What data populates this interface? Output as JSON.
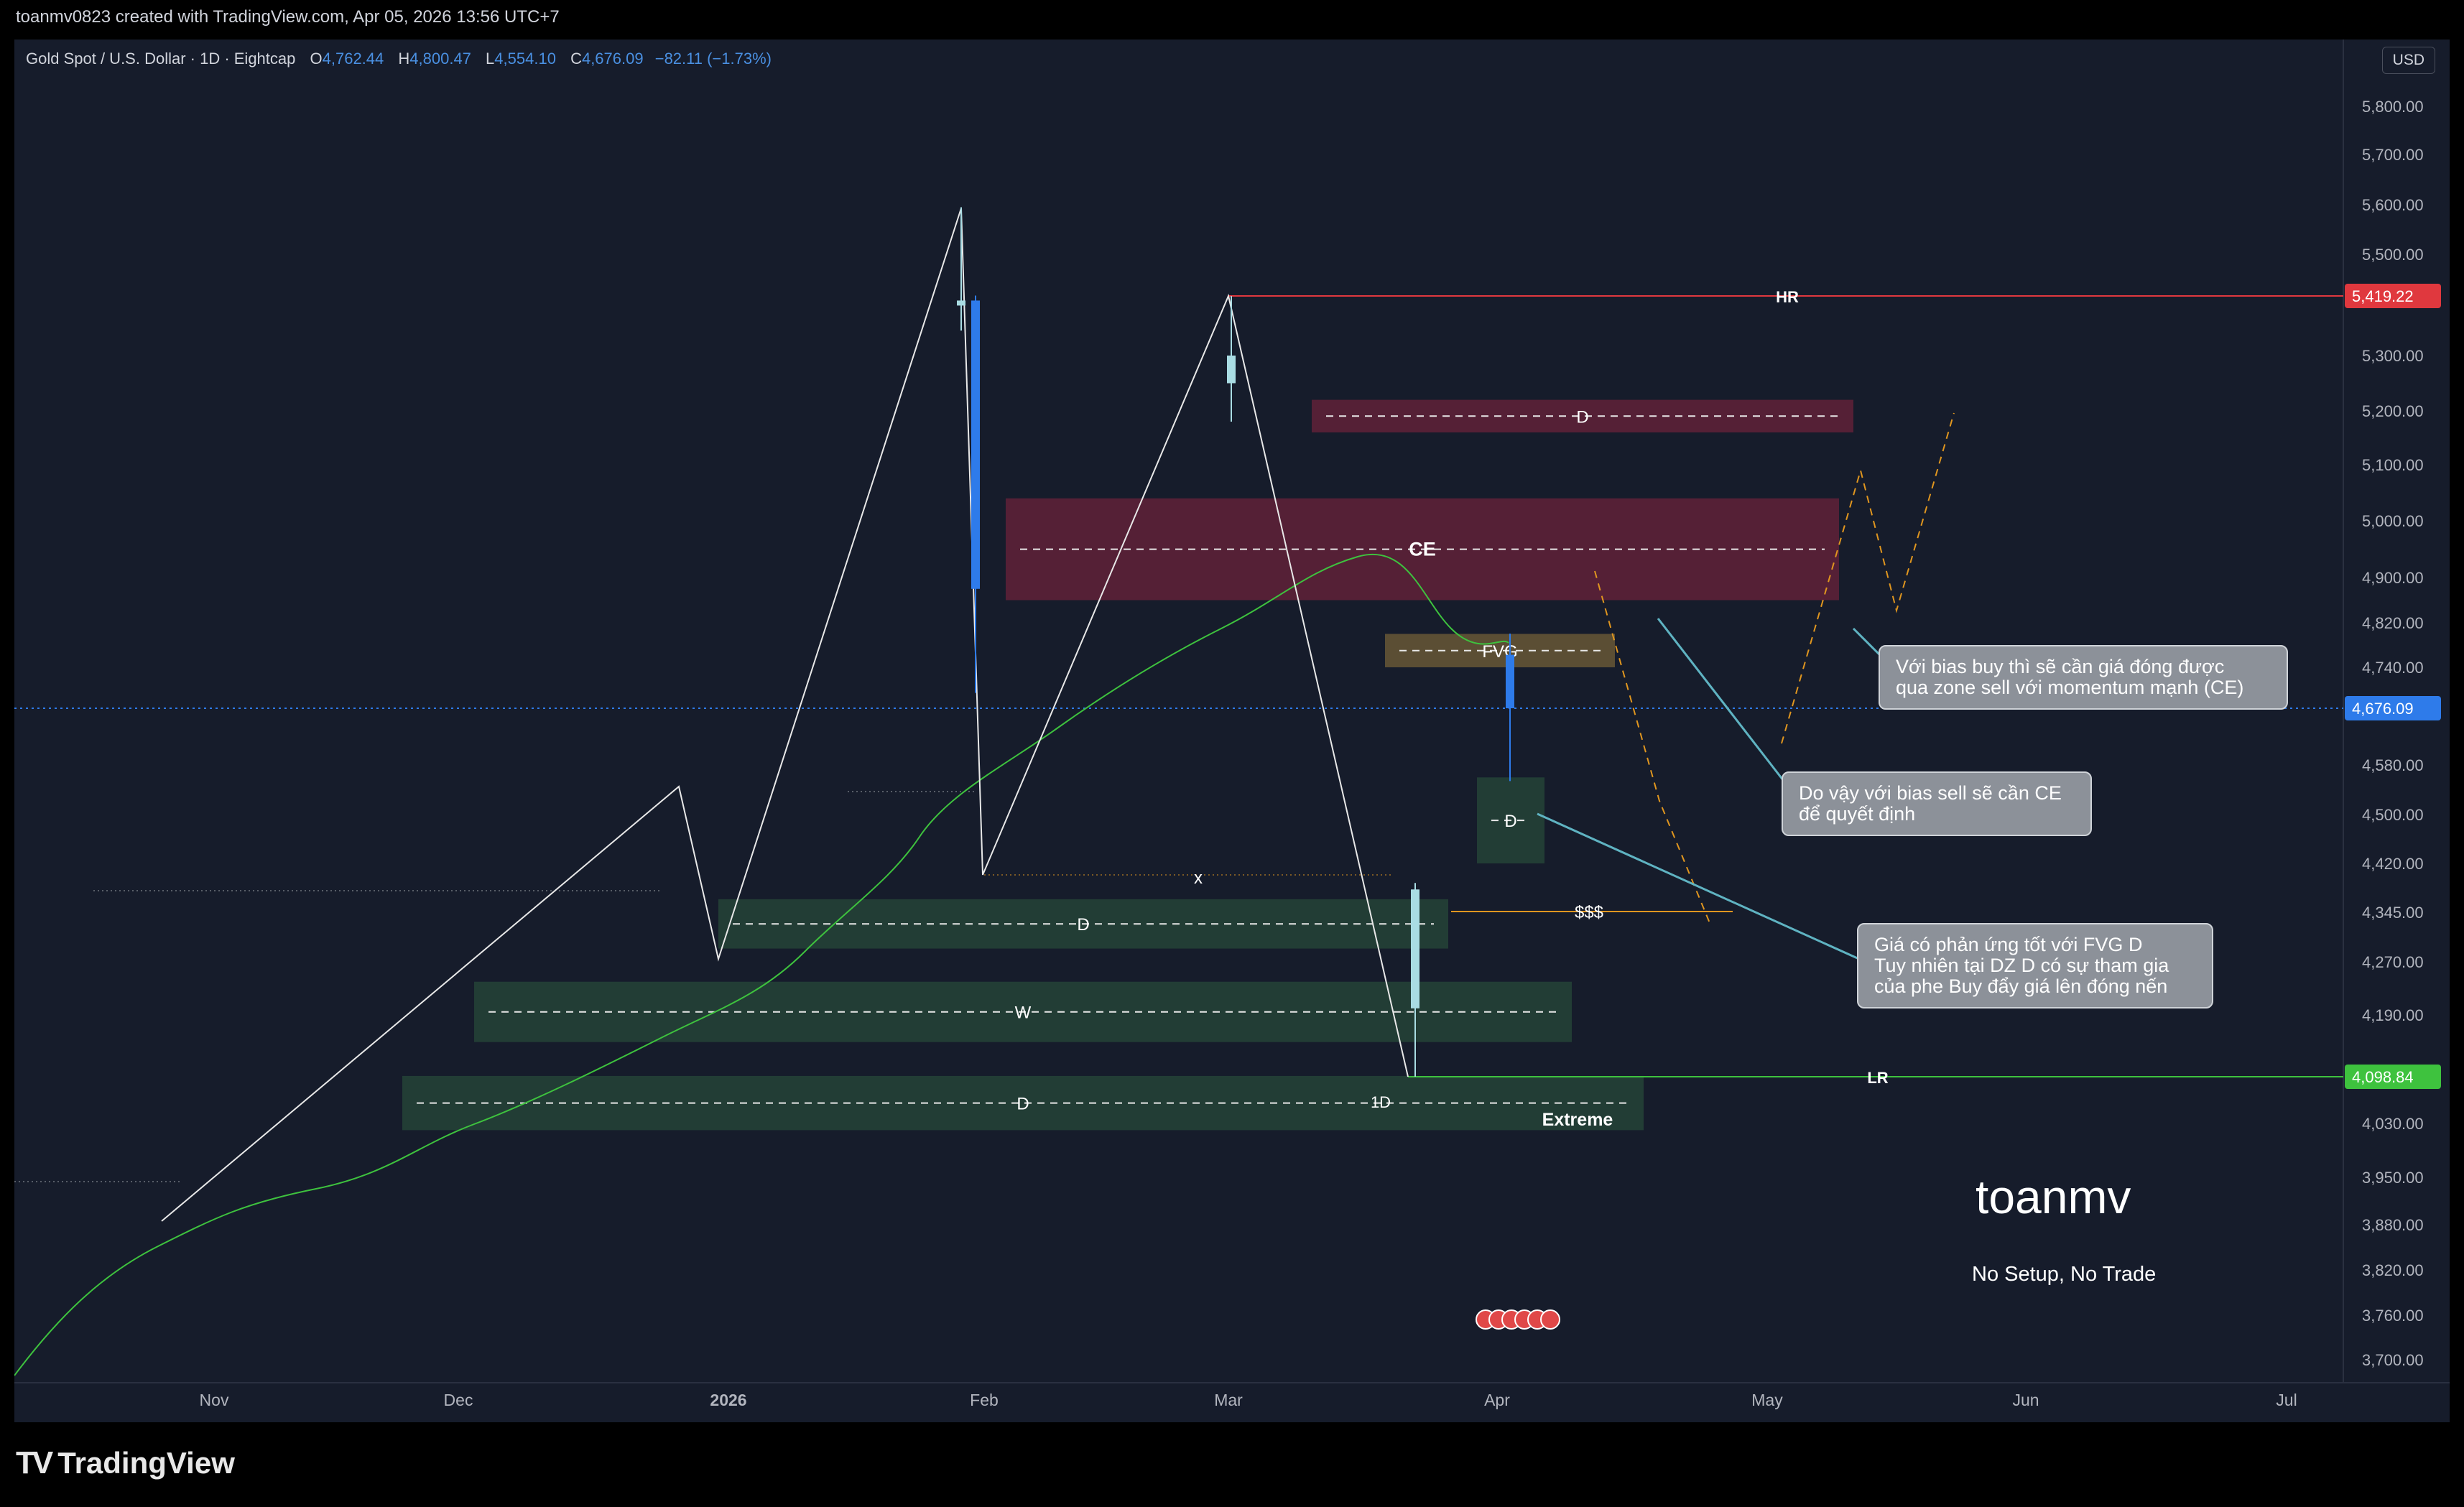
{
  "caption": "toanmv0823 created with TradingView.com, Apr 05, 2026 13:56 UTC+7",
  "legend": {
    "symbol": "Gold Spot / U.S. Dollar · 1D · Eightcap",
    "o_label": "O",
    "o_value": "4,762.44",
    "h_label": "H",
    "h_value": "4,800.47",
    "l_label": "L",
    "l_value": "4,554.10",
    "c_label": "C",
    "c_value": "4,676.09",
    "change": "−82.11 (−1.73%)"
  },
  "currency": "USD",
  "footer_logo": "TradingView",
  "author": "toanmv",
  "tagline": "No Setup, No Trade",
  "colors": {
    "up": "#a9dce3",
    "down": "#2e7bea",
    "orange": "#e0961f",
    "ma": "#3ec23e",
    "hr": "#e0383e",
    "lr": "#3ec23e"
  },
  "callouts": [
    {
      "lines": [
        "Với bias buy thì sẽ cần giá đóng được",
        "qua zone sell với momentum mạnh (CE)"
      ]
    },
    {
      "lines": [
        "Do vậy với bias sell sẽ cần CE",
        "để quyết định"
      ]
    },
    {
      "lines": [
        "Giá có phản ứng tốt với FVG D",
        "Tuy nhiên tại DZ D có sự tham gia",
        "của phe Buy đẩy giá lên đóng nến"
      ]
    }
  ],
  "chart_data": {
    "type": "candlestick",
    "y_axis": {
      "labels": [
        "5,800.00",
        "5,700.00",
        "5,600.00",
        "5,500.00",
        "5,300.00",
        "5,200.00",
        "5,100.00",
        "5,000.00",
        "4,900.00",
        "4,820.00",
        "4,740.00",
        "4,580.00",
        "4,500.00",
        "4,420.00",
        "4,345.00",
        "4,270.00",
        "4,190.00",
        "4,030.00",
        "3,950.00",
        "3,880.00",
        "3,820.00",
        "3,760.00",
        "3,700.00"
      ]
    },
    "x_axis": {
      "labels": [
        "Nov",
        "Dec",
        "2026",
        "Feb",
        "Mar",
        "Apr",
        "May",
        "Jun",
        "Jul"
      ]
    },
    "price_tags": {
      "hr": "5,419.22",
      "current": "4,676.09",
      "lr": "4,098.84"
    },
    "zones": [
      {
        "label": "D",
        "type": "supply",
        "from": 5160,
        "to": 5220
      },
      {
        "label": "CE",
        "type": "supply",
        "from": 4860,
        "to": 5040
      },
      {
        "label": "FVG",
        "type": "fvg",
        "from": 4740,
        "to": 4800
      },
      {
        "label": "D",
        "type": "demand",
        "from": 4420,
        "to": 4560
      },
      {
        "label": "D",
        "type": "demand",
        "from": 4290,
        "to": 4365
      },
      {
        "label": "W",
        "type": "demand",
        "from": 4150,
        "to": 4240
      },
      {
        "label": "D",
        "type": "demand",
        "from": 4020,
        "to": 4100
      }
    ],
    "annotations": [
      "HR",
      "LR",
      "$$$",
      "x",
      "1D",
      "Extreme"
    ],
    "ohlc_sample": [
      {
        "date": "2026-01-29",
        "open": 5400,
        "high": 5595,
        "low": 5350,
        "close": 5410
      },
      {
        "date": "2026-01-30",
        "open": 5410,
        "high": 5420,
        "low": 4700,
        "close": 4880
      },
      {
        "date": "2026-02-26",
        "open": 5250,
        "high": 5419,
        "low": 5180,
        "close": 5300
      },
      {
        "date": "2026-03-23",
        "open": 4200,
        "high": 4390,
        "low": 4099,
        "close": 4380
      },
      {
        "date": "2026-04-03",
        "open": 4762.44,
        "high": 4800.47,
        "low": 4554.1,
        "close": 4676.09
      }
    ]
  }
}
